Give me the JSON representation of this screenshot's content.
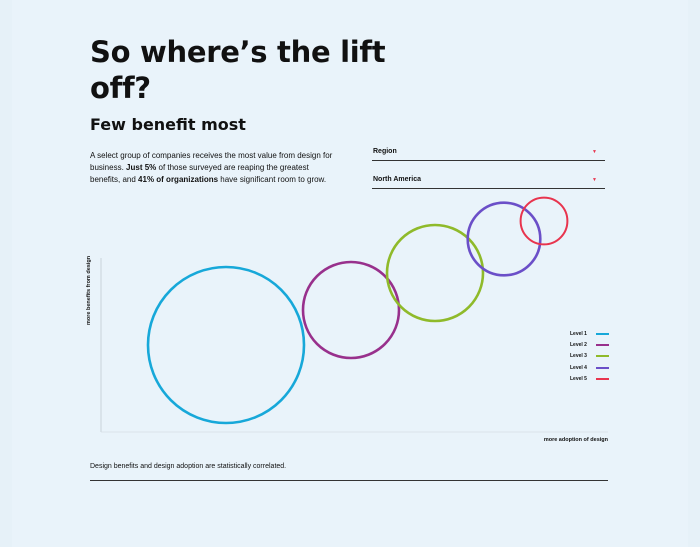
{
  "page": {
    "title": "So where’s the lift off?",
    "subtitle": "Few benefit most",
    "description": {
      "part1": "A select group of companies receives the most value from design for business. ",
      "bold1": "Just 5%",
      "part2": " of those surveyed are reaping the greatest benefits, and ",
      "bold2": "41% of organizations",
      "part3": " have significant room to grow."
    },
    "footnote": "Design benefits and design adoption are statistically correlated."
  },
  "filters": {
    "region": {
      "label": "Region"
    },
    "country": {
      "value": "North America"
    }
  },
  "chart_data": {
    "type": "scatter",
    "xlabel": "more adoption of design",
    "ylabel": "more benefits from design",
    "grid": false,
    "legend_position": "right",
    "series": [
      {
        "name": "Level 1",
        "color": "#17a8d9"
      },
      {
        "name": "Level 2",
        "color": "#98308c"
      },
      {
        "name": "Level 3",
        "color": "#8fba2a"
      },
      {
        "name": "Level 4",
        "color": "#6b4fc8"
      },
      {
        "name": "Level 5",
        "color": "#e8344e"
      }
    ],
    "points": [
      {
        "level": "Level 1",
        "adoption": 1,
        "benefit": 1.0,
        "share_pct": 41
      },
      {
        "level": "Level 2",
        "adoption": 2,
        "benefit": 2.1,
        "share_pct": 21
      },
      {
        "level": "Level 3",
        "adoption": 3,
        "benefit": 3.4,
        "share_pct": 21
      },
      {
        "level": "Level 4",
        "adoption": 4,
        "benefit": 4.5,
        "share_pct": 12
      },
      {
        "level": "Level 5",
        "adoption": 5,
        "benefit": 5.3,
        "share_pct": 5
      }
    ]
  }
}
